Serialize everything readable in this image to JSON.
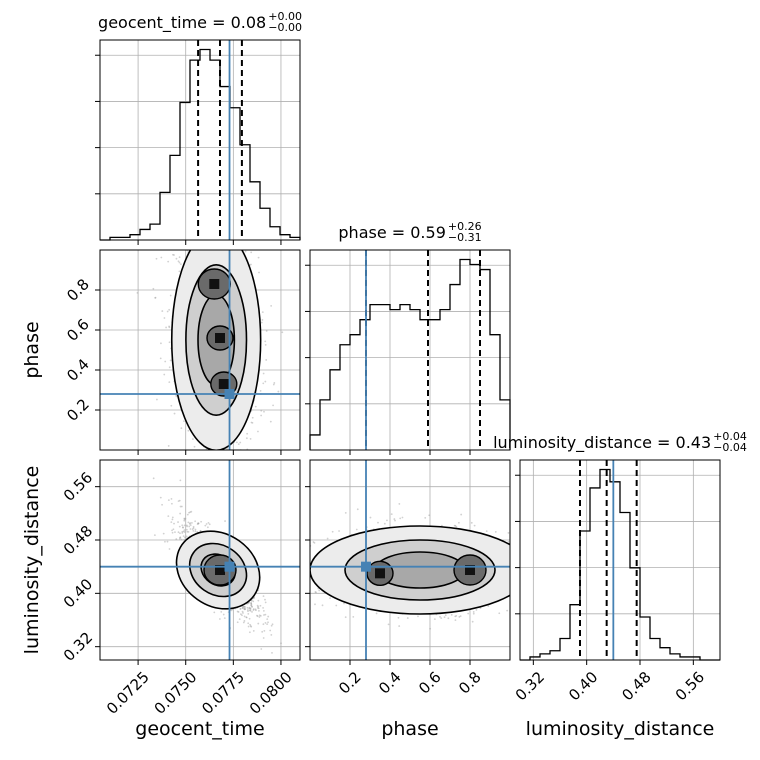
{
  "chart_data": {
    "type": "corner",
    "truth_color": "#4682b4",
    "hist_color": "#000000",
    "params": [
      {
        "key": "geocent_time",
        "label": "geocent_time",
        "range": [
          0.0705,
          0.081
        ],
        "ticks": [
          0.0725,
          0.075,
          0.0775,
          0.08
        ],
        "tick_labels": [
          "0.0725",
          "0.0750",
          "0.0775",
          "0.0800"
        ],
        "truth": 0.0773,
        "title_main": "geocent_time = 0.08",
        "title_sup": "+0.00",
        "title_sub": "−0.00",
        "quantiles": [
          0.07565,
          0.0768,
          0.07795
        ],
        "hist": [
          0,
          1,
          1,
          2,
          4,
          6,
          18,
          32,
          52,
          68,
          72,
          68,
          58,
          50,
          36,
          22,
          12,
          5,
          2,
          1
        ]
      },
      {
        "key": "phase",
        "label": "phase",
        "range": [
          0.0,
          1.0
        ],
        "ticks": [
          0.2,
          0.4,
          0.6,
          0.8
        ],
        "tick_labels": [
          "0.2",
          "0.4",
          "0.6",
          "0.8"
        ],
        "truth": 0.28,
        "title_main": "phase = 0.59",
        "title_sup": "+0.26",
        "title_sub": "−0.31",
        "quantiles": [
          0.28,
          0.59,
          0.85
        ],
        "hist": [
          3,
          10,
          16,
          21,
          23,
          26,
          29,
          29,
          28,
          29,
          28,
          26,
          26,
          28,
          33,
          38,
          37,
          36,
          23,
          10
        ]
      },
      {
        "key": "luminosity_distance",
        "label": "luminosity_distance",
        "range": [
          0.3,
          0.6
        ],
        "ticks": [
          0.32,
          0.4,
          0.48,
          0.56
        ],
        "tick_labels": [
          "0.32",
          "0.40",
          "0.48",
          "0.56"
        ],
        "truth": 0.44,
        "title_main": "luminosity_distance = 0.43",
        "title_sup": "+0.04",
        "title_sub": "−0.04",
        "quantiles": [
          0.39,
          0.43,
          0.475
        ],
        "hist": [
          0,
          1,
          2,
          3,
          7,
          18,
          42,
          56,
          62,
          58,
          48,
          30,
          14,
          7,
          4,
          2,
          1,
          1,
          0,
          0
        ]
      }
    ],
    "pairs": [
      {
        "x": "geocent_time",
        "y": "phase",
        "mean": [
          0.0766,
          0.55
        ],
        "sd": [
          0.0011,
          0.26
        ],
        "rho": -0.2,
        "blobs": [
          {
            "x": 0.0765,
            "y": 0.83,
            "w": 3
          },
          {
            "x": 0.0768,
            "y": 0.56,
            "w": 2
          },
          {
            "x": 0.077,
            "y": 0.33,
            "w": 2
          }
        ]
      },
      {
        "x": "geocent_time",
        "y": "luminosity_distance",
        "mean": [
          0.0767,
          0.435
        ],
        "sd": [
          0.001,
          0.035
        ],
        "rho": -0.75,
        "blobs": [
          {
            "x": 0.0768,
            "y": 0.435,
            "w": 3
          }
        ]
      },
      {
        "x": "phase",
        "y": "luminosity_distance",
        "mean": [
          0.55,
          0.435
        ],
        "sd": [
          0.25,
          0.03
        ],
        "rho": 0.0,
        "blobs": [
          {
            "x": 0.8,
            "y": 0.435,
            "w": 3
          },
          {
            "x": 0.35,
            "y": 0.43,
            "w": 2
          }
        ]
      }
    ],
    "grid": true,
    "contour_levels": [
      0.393,
      0.865,
      0.989
    ]
  }
}
